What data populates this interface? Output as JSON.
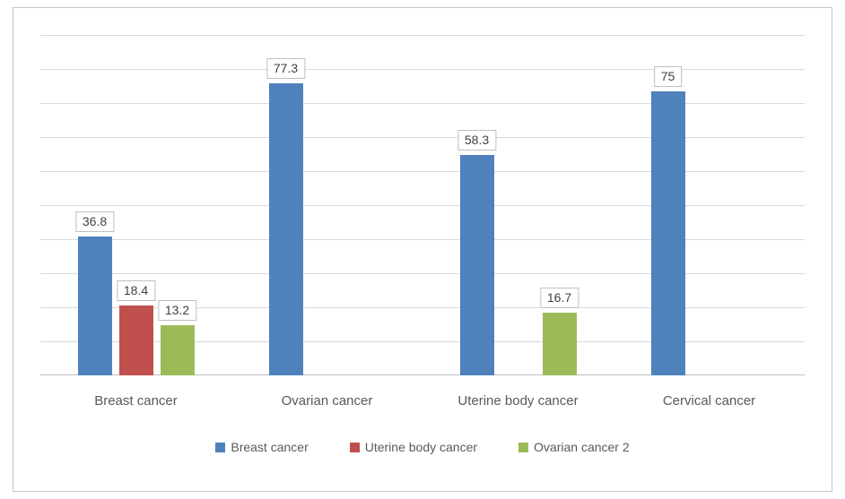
{
  "chart_data": {
    "type": "bar",
    "title": "",
    "xlabel": "",
    "ylabel": "",
    "categories": [
      "Breast cancer",
      "Ovarian cancer",
      "Uterine body cancer",
      "Cervical cancer"
    ],
    "series": [
      {
        "name": "Breast cancer",
        "color": "#4F81BD",
        "values": [
          36.8,
          77.3,
          58.3,
          75
        ]
      },
      {
        "name": "Uterine body cancer",
        "color": "#C0504D",
        "values": [
          18.4,
          null,
          null,
          null
        ]
      },
      {
        "name": "Ovarian cancer 2",
        "color": "#9BBB59",
        "values": [
          13.2,
          null,
          16.7,
          null
        ]
      }
    ],
    "data_labels": [
      [
        "36.8",
        "77.3",
        "58.3",
        "75"
      ],
      [
        "18.4",
        null,
        null,
        null
      ],
      [
        "13.2",
        null,
        "16.7",
        null
      ]
    ],
    "ylim": [
      0,
      90
    ],
    "gridlines": 10,
    "grid": true,
    "yticks_visible": false,
    "legend_position": "bottom",
    "legend_entries": [
      "Breast cancer",
      "Uterine body cancer",
      "Ovarian cancer 2"
    ],
    "colors": {
      "gridline": "#d9d9d9",
      "axis_line": "#bfbfbf",
      "frame_border": "#bdc7d1",
      "label_text": "#404040",
      "axis_text": "#595959"
    }
  }
}
